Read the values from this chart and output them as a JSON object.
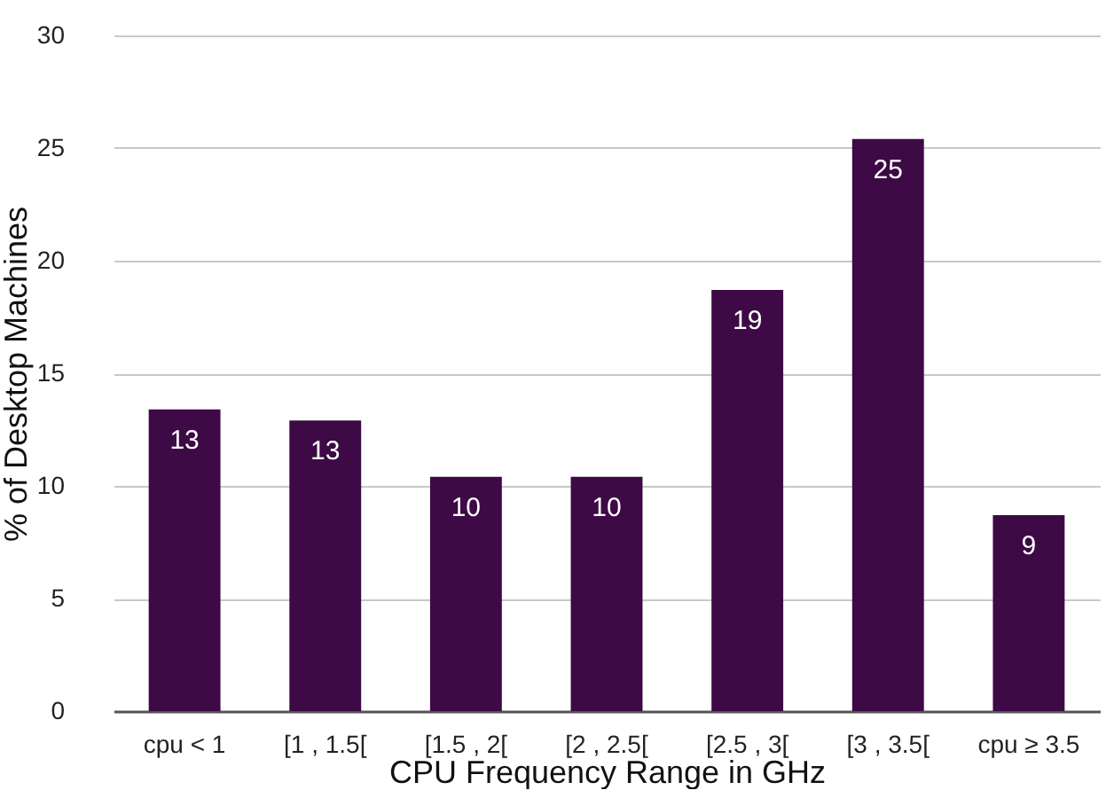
{
  "chart_data": {
    "type": "bar",
    "xlabel": "CPU Frequency Range in GHz",
    "ylabel": "% of Desktop Machines",
    "categories": [
      "cpu < 1",
      "[1 , 1.5[",
      "[1.5 , 2[",
      "[2 , 2.5[",
      "[2.5 , 3[",
      "[3 , 3.5[",
      "cpu ≥ 3.5"
    ],
    "values": [
      13.4,
      12.9,
      10.4,
      10.4,
      18.7,
      25.4,
      8.7
    ],
    "value_labels": [
      "13",
      "13",
      "10",
      "10",
      "19",
      "25",
      "9"
    ],
    "color": "#3d0a45",
    "ylim": [
      0,
      30
    ],
    "yticks": [
      0,
      5,
      10,
      15,
      20,
      25,
      30
    ],
    "grid": "y"
  }
}
